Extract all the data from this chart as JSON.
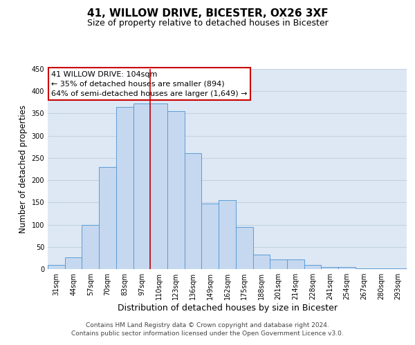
{
  "title": "41, WILLOW DRIVE, BICESTER, OX26 3XF",
  "subtitle": "Size of property relative to detached houses in Bicester",
  "xlabel": "Distribution of detached houses by size in Bicester",
  "ylabel": "Number of detached properties",
  "bar_labels": [
    "31sqm",
    "44sqm",
    "57sqm",
    "70sqm",
    "83sqm",
    "97sqm",
    "110sqm",
    "123sqm",
    "136sqm",
    "149sqm",
    "162sqm",
    "175sqm",
    "188sqm",
    "201sqm",
    "214sqm",
    "228sqm",
    "241sqm",
    "254sqm",
    "267sqm",
    "280sqm",
    "293sqm"
  ],
  "bar_values": [
    10,
    27,
    100,
    230,
    365,
    372,
    372,
    355,
    260,
    147,
    155,
    95,
    33,
    21,
    21,
    10,
    4,
    4,
    1,
    1,
    1
  ],
  "bar_color": "#c5d8f0",
  "bar_edge_color": "#5b9bd5",
  "background_color": "#ffffff",
  "plot_bg_color": "#dde8f4",
  "grid_color": "#c0cfe0",
  "ylim": [
    0,
    450
  ],
  "yticks": [
    0,
    50,
    100,
    150,
    200,
    250,
    300,
    350,
    400,
    450
  ],
  "vline_x": 5.5,
  "vline_color": "#cc0000",
  "annotation_title": "41 WILLOW DRIVE: 104sqm",
  "annotation_line1": "← 35% of detached houses are smaller (894)",
  "annotation_line2": "64% of semi-detached houses are larger (1,649) →",
  "annotation_box_color": "#ffffff",
  "annotation_box_edge": "#cc0000",
  "footer_line1": "Contains HM Land Registry data © Crown copyright and database right 2024.",
  "footer_line2": "Contains public sector information licensed under the Open Government Licence v3.0.",
  "title_fontsize": 11,
  "subtitle_fontsize": 9,
  "xlabel_fontsize": 9,
  "ylabel_fontsize": 8.5,
  "tick_fontsize": 7,
  "annotation_fontsize": 8,
  "footer_fontsize": 6.5
}
